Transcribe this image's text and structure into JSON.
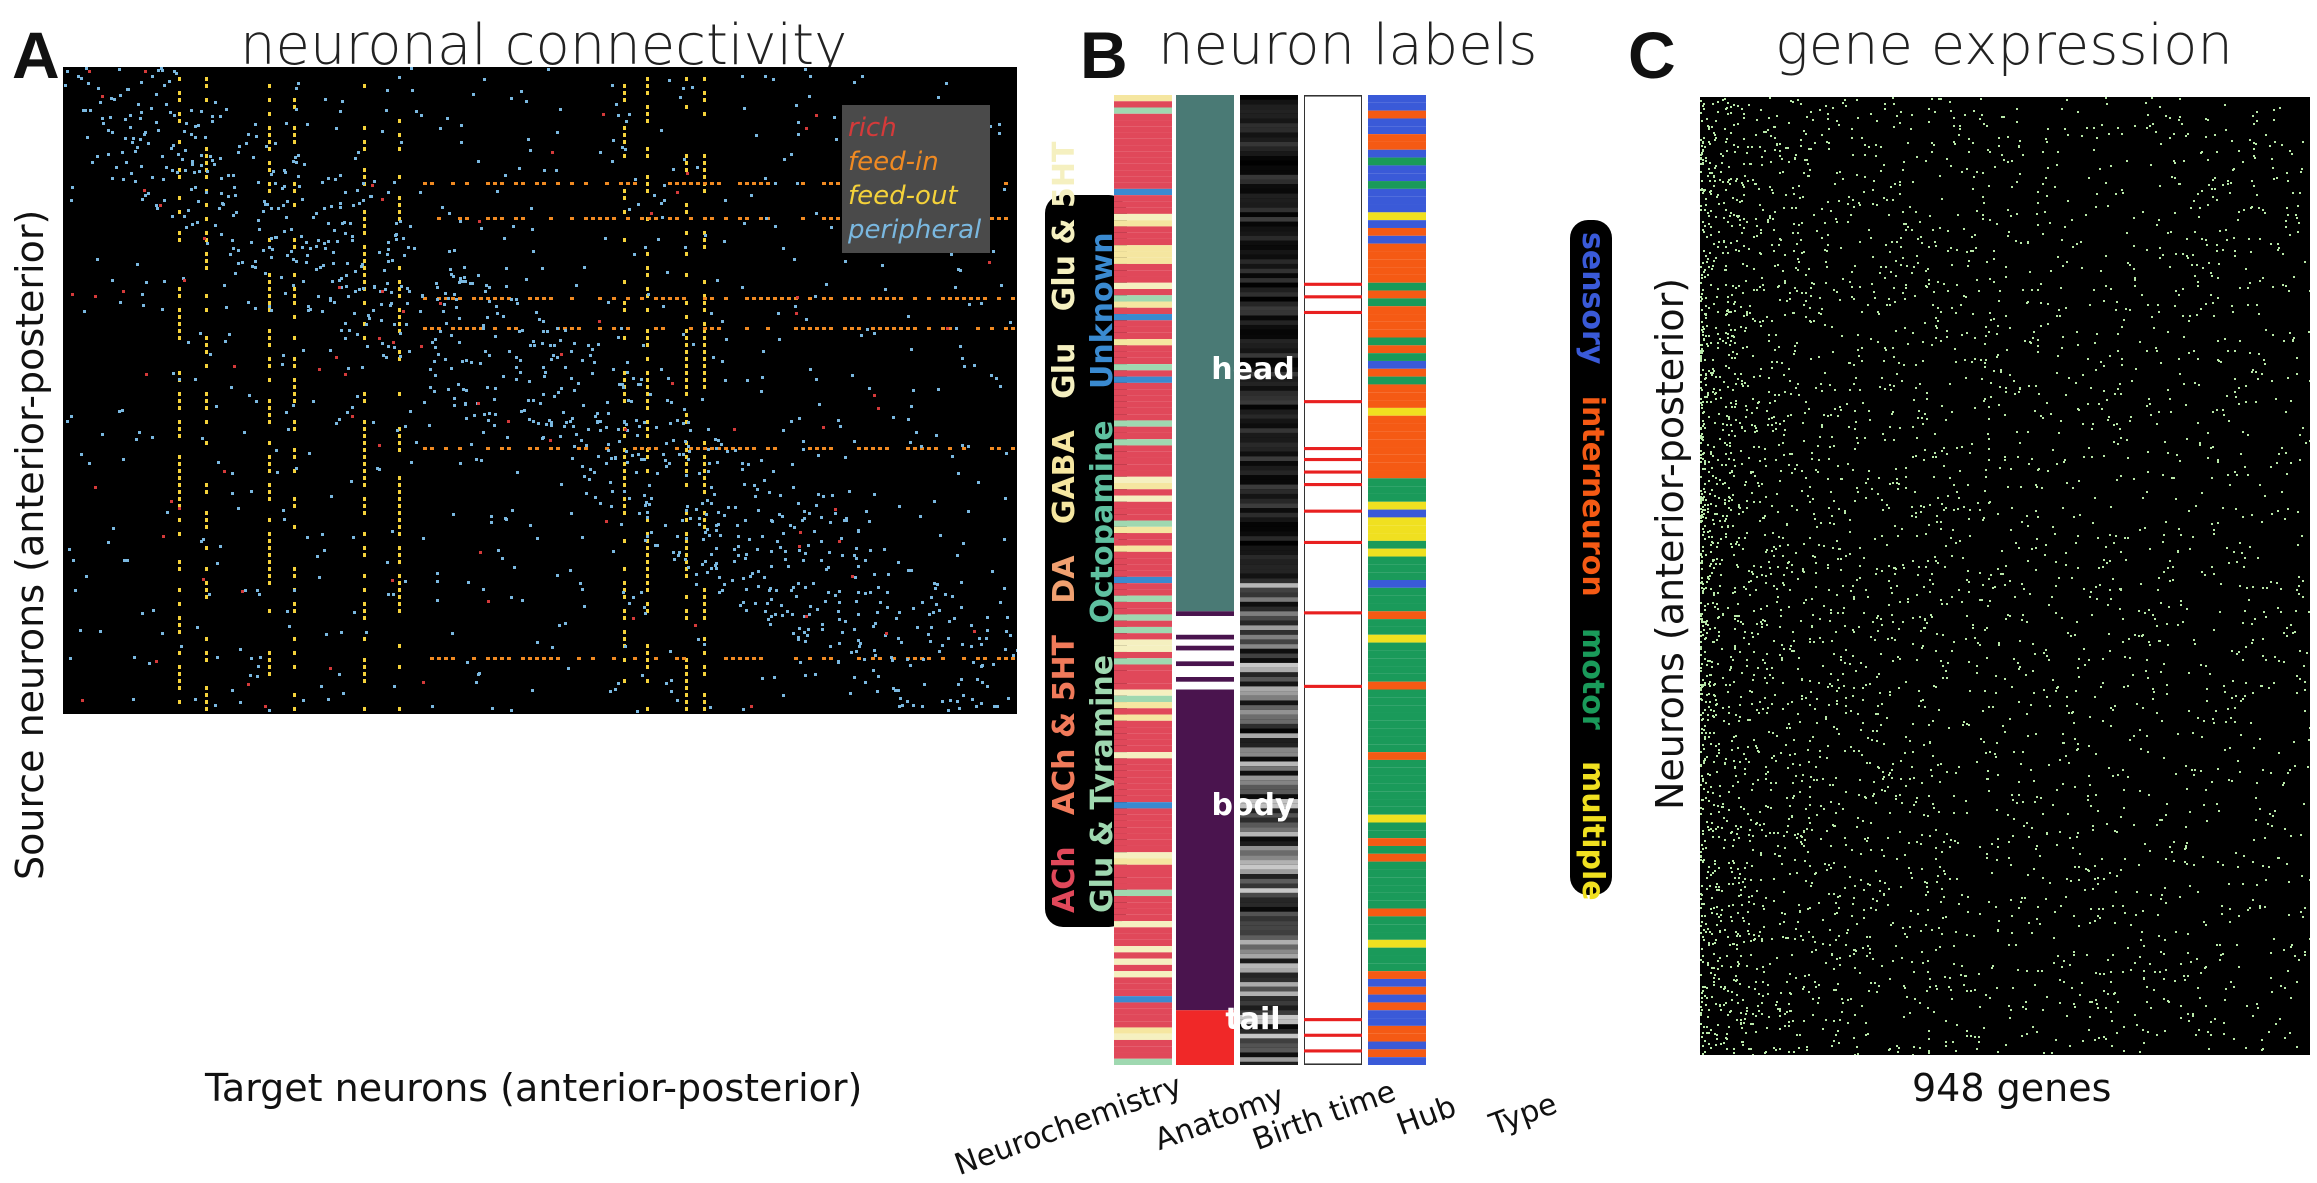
{
  "panelA": {
    "letter": "A",
    "title": "neuronal connectivity",
    "ylabel": "Source neurons (anterior-posterior)",
    "xlabel": "Target neurons (anterior-posterior)",
    "legend": [
      {
        "label": "rich",
        "color": "#d43a3a"
      },
      {
        "label": "feed-in",
        "color": "#f08a22"
      },
      {
        "label": "feed-out",
        "color": "#f5d23a"
      },
      {
        "label": "peripheral",
        "color": "#7ab8e0"
      }
    ]
  },
  "panelB": {
    "letter": "B",
    "title": "neuron labels",
    "neurochemistry_key": [
      {
        "label": "ACh",
        "color": "#e0485a"
      },
      {
        "label": "ACh & 5HT",
        "color": "#f07a5a"
      },
      {
        "label": "DA",
        "color": "#f0a070"
      },
      {
        "label": "GABA",
        "color": "#f5e6a0"
      },
      {
        "label": "Glu",
        "color": "#f5f0c0"
      },
      {
        "label": "Glu & 5HT",
        "color": "#f5f0c0"
      },
      {
        "label": "Glu & Tyramine",
        "color": "#9fd8b0"
      },
      {
        "label": "Octopamine",
        "color": "#5fc0a0"
      },
      {
        "label": "Unknown",
        "color": "#3a8ad0"
      }
    ],
    "anatomy": [
      {
        "label": "head",
        "color": "#4a7a75"
      },
      {
        "label": "body",
        "color": "#4a144e"
      },
      {
        "label": "tail",
        "color": "#f02828"
      }
    ],
    "type_key": [
      {
        "label": "sensory",
        "color": "#3a5ad8"
      },
      {
        "label": "interneuron",
        "color": "#f55a14"
      },
      {
        "label": "motor",
        "color": "#1a9a5a"
      },
      {
        "label": "multiple",
        "color": "#f0e020"
      }
    ],
    "strip_labels": [
      "Neurochemistry",
      "Anatomy",
      "Birth time",
      "Hub",
      "Type"
    ]
  },
  "panelC": {
    "letter": "C",
    "title": "gene expression",
    "ylabel": "Neurons (anterior-posterior)",
    "xlabel": "948 genes",
    "dot_color": "#b8e8a8"
  }
}
